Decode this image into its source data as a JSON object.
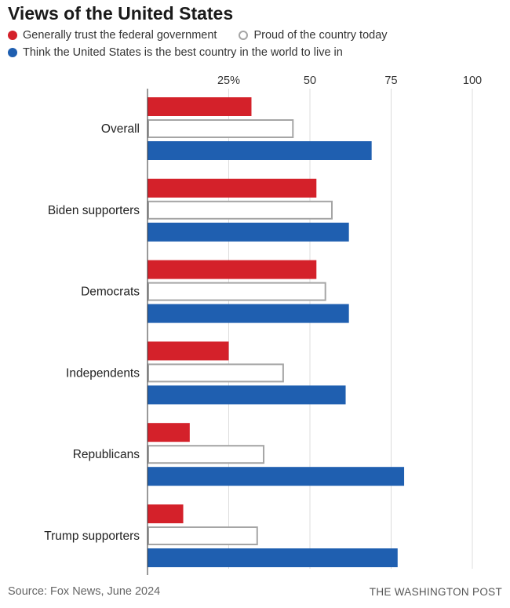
{
  "title": "Views of the United States",
  "legend": [
    {
      "label": "Generally trust the federal government",
      "color": "#d4212a",
      "style": "filled"
    },
    {
      "label": "Proud of the country today",
      "color": "#a5a5a5",
      "style": "outline"
    },
    {
      "label": "Think the United States is the best country in the world to live in",
      "color": "#1f5fb0",
      "style": "filled"
    }
  ],
  "source": "Source: Fox News, June 2024",
  "brand": "THE WASHINGTON POST",
  "chart_data": {
    "type": "bar",
    "orientation": "horizontal",
    "categories": [
      "Overall",
      "Biden supporters",
      "Democrats",
      "Independents",
      "Republicans",
      "Trump supporters"
    ],
    "series": [
      {
        "name": "Generally trust the federal government",
        "color": "#d4212a",
        "style": "filled",
        "values": [
          32,
          52,
          52,
          25,
          13,
          11
        ]
      },
      {
        "name": "Proud of the country today",
        "color": "#a5a5a5",
        "style": "outline",
        "values": [
          45,
          57,
          55,
          42,
          36,
          34
        ]
      },
      {
        "name": "Think the United States is the best country in the world to live in",
        "color": "#1f5fb0",
        "style": "filled",
        "values": [
          69,
          62,
          62,
          61,
          79,
          77
        ]
      }
    ],
    "xlim": [
      0,
      100
    ],
    "ticks": [
      {
        "value": 25,
        "label": "25%"
      },
      {
        "value": 50,
        "label": "50"
      },
      {
        "value": 75,
        "label": "75"
      },
      {
        "value": 100,
        "label": "100"
      }
    ],
    "grid": true,
    "legend_position": "top"
  }
}
